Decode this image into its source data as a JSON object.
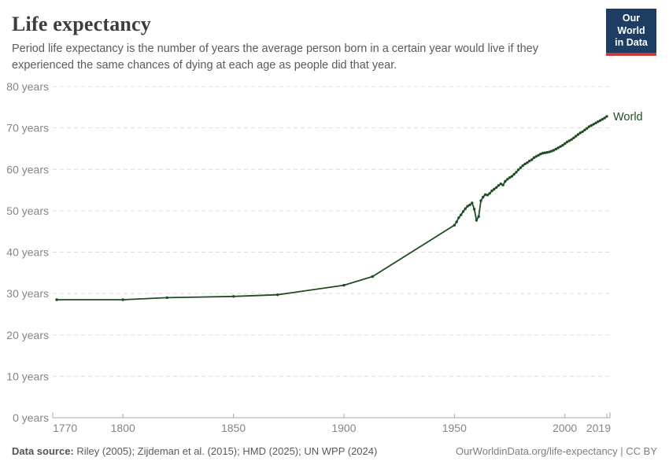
{
  "header": {
    "title": "Life expectancy",
    "subtitle": "Period life expectancy is the number of years the average person born in a certain year would live if they experienced the same chances of dying at each age as people did that year."
  },
  "logo": {
    "line1": "Our World",
    "line2": "in Data",
    "background_color": "#1d3d63",
    "accent_color": "#cc3b3c"
  },
  "footer": {
    "data_source_label": "Data source:",
    "sources": " Riley (2005); Zijdeman et al. (2015); HMD (2025); UN WPP (2024)",
    "attribution": "OurWorldinData.org/life-expectancy | CC BY"
  },
  "chart_data": {
    "type": "line",
    "title": "Life expectancy",
    "xlabel": "",
    "ylabel": "",
    "x_domain": [
      1770,
      2019
    ],
    "y_domain": [
      0,
      80
    ],
    "grid": true,
    "legend_position": "end-of-line",
    "x_tick_values": [
      1770,
      1800,
      1850,
      1900,
      1950,
      2000,
      2019
    ],
    "x_tick_labels": [
      "1770",
      "1800",
      "1850",
      "1900",
      "1950",
      "2000",
      "2019"
    ],
    "y_tick_values": [
      0,
      10,
      20,
      30,
      40,
      50,
      60,
      70,
      80
    ],
    "y_tick_suffix": " years",
    "colors": {
      "line": "#1d4e22",
      "grid": "#dcdcdc",
      "axis": "#a8a8a8",
      "tick_text": "#858585"
    },
    "series": [
      {
        "name": "World",
        "color": "#1d4e22",
        "points": [
          [
            1770,
            28.5
          ],
          [
            1800,
            28.5
          ],
          [
            1820,
            29.0
          ],
          [
            1850,
            29.3
          ],
          [
            1870,
            29.7
          ],
          [
            1900,
            32.0
          ],
          [
            1913,
            34.1
          ],
          [
            1950,
            46.5
          ],
          [
            1951,
            47.3
          ],
          [
            1952,
            48.3
          ],
          [
            1953,
            49.0
          ],
          [
            1954,
            49.8
          ],
          [
            1955,
            50.5
          ],
          [
            1956,
            51.1
          ],
          [
            1957,
            51.4
          ],
          [
            1958,
            51.9
          ],
          [
            1959,
            50.4
          ],
          [
            1960,
            47.7
          ],
          [
            1961,
            48.6
          ],
          [
            1962,
            52.4
          ],
          [
            1963,
            53.3
          ],
          [
            1964,
            53.9
          ],
          [
            1965,
            53.8
          ],
          [
            1966,
            54.2
          ],
          [
            1967,
            54.8
          ],
          [
            1968,
            55.2
          ],
          [
            1969,
            55.6
          ],
          [
            1970,
            56.1
          ],
          [
            1971,
            56.5
          ],
          [
            1972,
            56.2
          ],
          [
            1973,
            57.1
          ],
          [
            1974,
            57.6
          ],
          [
            1975,
            58.0
          ],
          [
            1976,
            58.3
          ],
          [
            1977,
            58.8
          ],
          [
            1978,
            59.3
          ],
          [
            1979,
            59.9
          ],
          [
            1980,
            60.4
          ],
          [
            1981,
            60.9
          ],
          [
            1982,
            61.3
          ],
          [
            1983,
            61.6
          ],
          [
            1984,
            62.0
          ],
          [
            1985,
            62.3
          ],
          [
            1986,
            62.8
          ],
          [
            1987,
            63.1
          ],
          [
            1988,
            63.4
          ],
          [
            1989,
            63.7
          ],
          [
            1990,
            63.9
          ],
          [
            1991,
            64.0
          ],
          [
            1992,
            64.1
          ],
          [
            1993,
            64.2
          ],
          [
            1994,
            64.4
          ],
          [
            1995,
            64.6
          ],
          [
            1996,
            64.9
          ],
          [
            1997,
            65.2
          ],
          [
            1998,
            65.5
          ],
          [
            1999,
            65.8
          ],
          [
            2000,
            66.2
          ],
          [
            2001,
            66.6
          ],
          [
            2002,
            66.9
          ],
          [
            2003,
            67.2
          ],
          [
            2004,
            67.6
          ],
          [
            2005,
            68.0
          ],
          [
            2006,
            68.4
          ],
          [
            2007,
            68.8
          ],
          [
            2008,
            69.1
          ],
          [
            2009,
            69.5
          ],
          [
            2010,
            69.9
          ],
          [
            2011,
            70.3
          ],
          [
            2012,
            70.6
          ],
          [
            2013,
            70.9
          ],
          [
            2014,
            71.2
          ],
          [
            2015,
            71.5
          ],
          [
            2016,
            71.8
          ],
          [
            2017,
            72.1
          ],
          [
            2018,
            72.4
          ],
          [
            2019,
            72.8
          ]
        ]
      }
    ]
  }
}
